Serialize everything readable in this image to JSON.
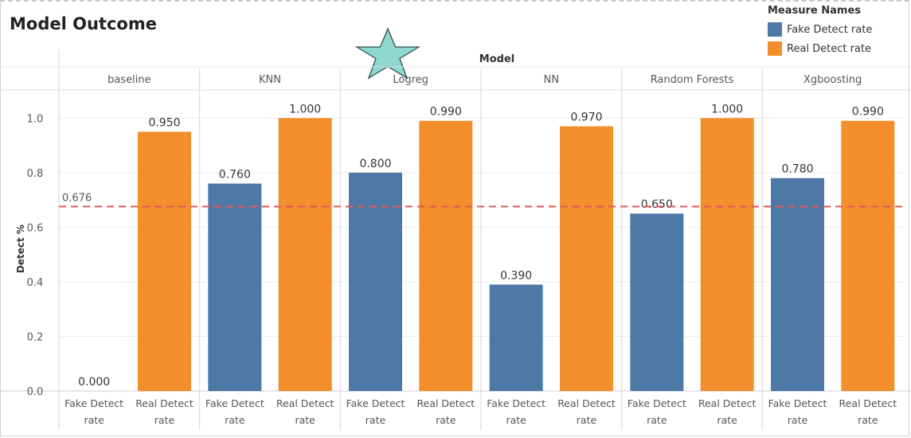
{
  "title": "Model Outcome",
  "legend": {
    "title": "Measure Names",
    "items": [
      {
        "label": "Fake Detect rate",
        "color": "#4e79a7"
      },
      {
        "label": "Real Detect rate",
        "color": "#f28e2b"
      }
    ]
  },
  "decoration": {
    "icon": "star-icon",
    "color": "#8ed8d0"
  },
  "chart_data": {
    "type": "bar",
    "column_header": "Model",
    "groups": [
      "baseline",
      "KNN",
      "Logreg",
      "NN",
      "Random Forests",
      "Xgboosting"
    ],
    "measures": [
      "Fake Detect rate",
      "Real Detect rate"
    ],
    "series": [
      {
        "name": "Fake Detect rate",
        "values": [
          0.0,
          0.76,
          0.8,
          0.39,
          0.65,
          0.78
        ],
        "color": "#4e79a7"
      },
      {
        "name": "Real Detect rate",
        "values": [
          0.95,
          1.0,
          0.99,
          0.97,
          1.0,
          0.99
        ],
        "color": "#f28e2b"
      }
    ],
    "value_labels": [
      [
        "0.000",
        "0.760",
        "0.800",
        "0.390",
        "0.650",
        "0.780"
      ],
      [
        "0.950",
        "1.000",
        "0.990",
        "0.970",
        "1.000",
        "0.990"
      ]
    ],
    "ylabel": "Detect %",
    "ylim": [
      0,
      1.1
    ],
    "yticks": [
      0.0,
      0.2,
      0.4,
      0.6,
      0.8,
      1.0
    ],
    "ytick_labels": [
      "0.0",
      "0.2",
      "0.4",
      "0.6",
      "0.8",
      "1.0"
    ],
    "reference_line": {
      "value": 0.676,
      "label": "0.676",
      "color": "#e05a5a",
      "style": "dashed"
    },
    "gridlines": true
  }
}
